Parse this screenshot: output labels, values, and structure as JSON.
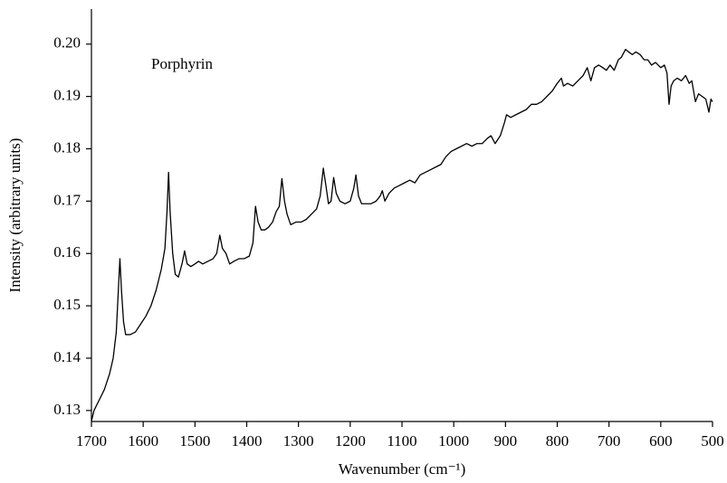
{
  "chart_data": {
    "type": "line",
    "x_label": "Wavenumber (cm⁻¹)",
    "y_label": "Intensity (arbitrary units)",
    "annotation": "Porphyrin",
    "xlim": [
      1700,
      500
    ],
    "xticks": [
      1700,
      1600,
      1500,
      1400,
      1300,
      1200,
      1100,
      1000,
      900,
      800,
      700,
      600,
      500
    ],
    "ylim": [
      0.1279,
      0.2067
    ],
    "yticks": [
      0.13,
      0.14,
      0.15,
      0.16,
      0.17,
      0.18,
      0.19,
      {
        "value": 0.2,
        "label": "0.20"
      }
    ],
    "x": [
      1700,
      1695,
      1685,
      1675,
      1665,
      1658,
      1652,
      1648,
      1645,
      1642,
      1638,
      1634,
      1625,
      1615,
      1605,
      1595,
      1585,
      1575,
      1565,
      1558,
      1554,
      1551,
      1548,
      1543,
      1538,
      1532,
      1525,
      1520,
      1515,
      1508,
      1500,
      1493,
      1485,
      1475,
      1465,
      1458,
      1452,
      1447,
      1440,
      1433,
      1425,
      1415,
      1405,
      1395,
      1388,
      1383,
      1378,
      1372,
      1365,
      1358,
      1350,
      1343,
      1337,
      1332,
      1327,
      1322,
      1315,
      1305,
      1295,
      1285,
      1275,
      1265,
      1258,
      1252,
      1247,
      1242,
      1237,
      1232,
      1227,
      1220,
      1210,
      1200,
      1193,
      1189,
      1184,
      1178,
      1170,
      1160,
      1150,
      1142,
      1138,
      1133,
      1125,
      1115,
      1105,
      1095,
      1085,
      1075,
      1065,
      1055,
      1045,
      1035,
      1025,
      1015,
      1005,
      995,
      985,
      975,
      965,
      955,
      945,
      935,
      928,
      920,
      910,
      902,
      898,
      890,
      880,
      870,
      860,
      850,
      840,
      830,
      820,
      810,
      800,
      792,
      788,
      780,
      770,
      760,
      750,
      742,
      735,
      728,
      720,
      712,
      705,
      698,
      690,
      682,
      676,
      668,
      662,
      655,
      648,
      640,
      632,
      625,
      618,
      610,
      600,
      593,
      588,
      584,
      580,
      575,
      568,
      560,
      552,
      545,
      540,
      533,
      527,
      520,
      513,
      507,
      503,
      500
    ],
    "series": [
      {
        "color": "#000000",
        "values": [
          0.128,
          0.13,
          0.132,
          0.134,
          0.137,
          0.14,
          0.145,
          0.153,
          0.159,
          0.153,
          0.147,
          0.1445,
          0.1445,
          0.145,
          0.1465,
          0.148,
          0.15,
          0.153,
          0.157,
          0.161,
          0.168,
          0.1755,
          0.168,
          0.16,
          0.156,
          0.1555,
          0.158,
          0.1605,
          0.158,
          0.1575,
          0.158,
          0.1585,
          0.158,
          0.1585,
          0.159,
          0.16,
          0.1635,
          0.161,
          0.16,
          0.158,
          0.1585,
          0.159,
          0.159,
          0.1595,
          0.162,
          0.169,
          0.166,
          0.1645,
          0.1645,
          0.165,
          0.166,
          0.168,
          0.169,
          0.1743,
          0.17,
          0.1675,
          0.1655,
          0.166,
          0.166,
          0.1665,
          0.1675,
          0.1685,
          0.171,
          0.1763,
          0.173,
          0.1695,
          0.17,
          0.1745,
          0.1715,
          0.17,
          0.1695,
          0.17,
          0.1725,
          0.175,
          0.171,
          0.1695,
          0.1695,
          0.1695,
          0.17,
          0.171,
          0.172,
          0.17,
          0.1715,
          0.1725,
          0.173,
          0.1735,
          0.174,
          0.1735,
          0.175,
          0.1755,
          0.176,
          0.1765,
          0.177,
          0.1785,
          0.1795,
          0.18,
          0.1805,
          0.181,
          0.1805,
          0.181,
          0.181,
          0.182,
          0.1825,
          0.181,
          0.1825,
          0.185,
          0.1865,
          0.186,
          0.1865,
          0.187,
          0.1875,
          0.1885,
          0.1885,
          0.189,
          0.19,
          0.191,
          0.1925,
          0.1935,
          0.192,
          0.1925,
          0.192,
          0.193,
          0.194,
          0.1955,
          0.193,
          0.1955,
          0.196,
          0.1955,
          0.195,
          0.196,
          0.195,
          0.197,
          0.1975,
          0.199,
          0.1985,
          0.198,
          0.1985,
          0.198,
          0.197,
          0.197,
          0.196,
          0.1965,
          0.1955,
          0.196,
          0.1945,
          0.1885,
          0.192,
          0.193,
          0.1935,
          0.193,
          0.194,
          0.1925,
          0.193,
          0.189,
          0.1905,
          0.19,
          0.1895,
          0.187,
          0.1895,
          0.189
        ]
      }
    ]
  }
}
